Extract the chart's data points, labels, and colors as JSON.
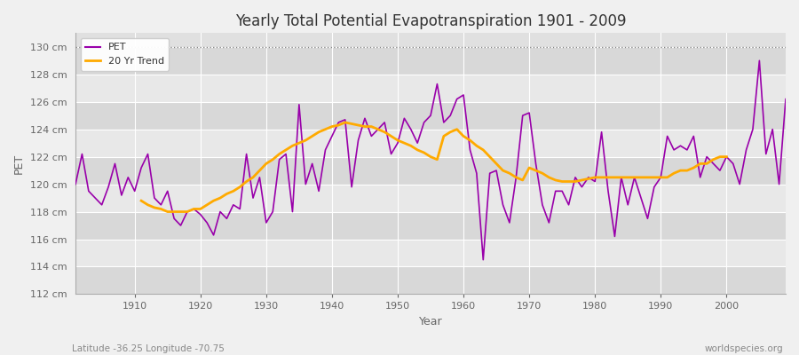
{
  "title": "Yearly Total Potential Evapotranspiration 1901 - 2009",
  "xlabel": "Year",
  "ylabel": "PET",
  "footnote_left": "Latitude -36.25 Longitude -70.75",
  "footnote_right": "worldspecies.org",
  "legend_pet": "PET",
  "legend_trend": "20 Yr Trend",
  "pet_color": "#9900aa",
  "trend_color": "#ffaa00",
  "background_color": "#f0f0f0",
  "plot_bg_color": "#e0e0e0",
  "band_color_1": "#d8d8d8",
  "band_color_2": "#e8e8e8",
  "ylim": [
    112,
    131
  ],
  "yticks": [
    112,
    114,
    116,
    118,
    120,
    122,
    124,
    126,
    128,
    130
  ],
  "ytick_labels": [
    "112 cm",
    "114 cm",
    "116 cm",
    "118 cm",
    "120 cm",
    "122 cm",
    "124 cm",
    "126 cm",
    "128 cm",
    "130 cm"
  ],
  "xlim": [
    1901,
    2009
  ],
  "xticks": [
    1910,
    1920,
    1930,
    1940,
    1950,
    1960,
    1970,
    1980,
    1990,
    2000
  ],
  "years": [
    1901,
    1902,
    1903,
    1904,
    1905,
    1906,
    1907,
    1908,
    1909,
    1910,
    1911,
    1912,
    1913,
    1914,
    1915,
    1916,
    1917,
    1918,
    1919,
    1920,
    1921,
    1922,
    1923,
    1924,
    1925,
    1926,
    1927,
    1928,
    1929,
    1930,
    1931,
    1932,
    1933,
    1934,
    1935,
    1936,
    1937,
    1938,
    1939,
    1940,
    1941,
    1942,
    1943,
    1944,
    1945,
    1946,
    1947,
    1948,
    1949,
    1950,
    1951,
    1952,
    1953,
    1954,
    1955,
    1956,
    1957,
    1958,
    1959,
    1960,
    1961,
    1962,
    1963,
    1964,
    1965,
    1966,
    1967,
    1968,
    1969,
    1970,
    1971,
    1972,
    1973,
    1974,
    1975,
    1976,
    1977,
    1978,
    1979,
    1980,
    1981,
    1982,
    1983,
    1984,
    1985,
    1986,
    1987,
    1988,
    1989,
    1990,
    1991,
    1992,
    1993,
    1994,
    1995,
    1996,
    1997,
    1998,
    1999,
    2000,
    2001,
    2002,
    2003,
    2004,
    2005,
    2006,
    2007,
    2008,
    2009
  ],
  "pet_values": [
    120.0,
    122.2,
    119.5,
    119.0,
    118.5,
    119.8,
    121.5,
    119.2,
    120.5,
    119.5,
    121.2,
    122.2,
    119.0,
    118.5,
    119.5,
    117.5,
    117.0,
    118.0,
    118.2,
    117.8,
    117.2,
    116.3,
    118.0,
    117.5,
    118.5,
    118.2,
    122.2,
    119.0,
    120.5,
    117.2,
    118.0,
    121.8,
    122.2,
    118.0,
    125.8,
    120.0,
    121.5,
    119.5,
    122.5,
    123.5,
    124.5,
    124.7,
    119.8,
    123.2,
    124.8,
    123.5,
    124.0,
    124.5,
    122.2,
    123.0,
    124.8,
    124.0,
    123.0,
    124.5,
    125.0,
    127.3,
    124.5,
    125.0,
    126.2,
    126.5,
    122.5,
    120.8,
    114.5,
    120.8,
    121.0,
    118.5,
    117.2,
    120.5,
    125.0,
    125.2,
    121.5,
    118.5,
    117.2,
    119.5,
    119.5,
    118.5,
    120.5,
    119.8,
    120.5,
    120.2,
    123.8,
    119.5,
    116.2,
    120.5,
    118.5,
    120.5,
    119.0,
    117.5,
    119.8,
    120.5,
    123.5,
    122.5,
    122.8,
    122.5,
    123.5,
    120.5,
    122.0,
    121.5,
    121.0,
    122.0,
    121.5,
    120.0,
    122.5,
    124.0,
    129.0,
    122.2,
    124.0,
    120.0,
    126.2
  ],
  "trend_values": [
    null,
    null,
    null,
    null,
    null,
    null,
    null,
    null,
    null,
    null,
    118.8,
    118.5,
    118.3,
    118.2,
    118.0,
    118.0,
    118.0,
    118.0,
    118.2,
    118.2,
    118.5,
    118.8,
    119.0,
    119.3,
    119.5,
    119.8,
    120.2,
    120.5,
    121.0,
    121.5,
    121.8,
    122.2,
    122.5,
    122.8,
    123.0,
    123.2,
    123.5,
    123.8,
    124.0,
    124.2,
    124.3,
    124.5,
    124.4,
    124.3,
    124.2,
    124.2,
    124.0,
    123.8,
    123.5,
    123.2,
    123.0,
    122.8,
    122.5,
    122.3,
    122.0,
    121.8,
    123.5,
    123.8,
    124.0,
    123.5,
    123.2,
    122.8,
    122.5,
    122.0,
    121.5,
    121.0,
    120.8,
    120.5,
    120.3,
    121.2,
    121.0,
    120.8,
    120.5,
    120.3,
    120.2,
    120.2,
    120.2,
    120.3,
    120.4,
    120.5,
    120.5,
    120.5,
    120.5,
    120.5,
    120.5,
    120.5,
    120.5,
    120.5,
    120.5,
    120.5,
    120.5,
    120.8,
    121.0,
    121.0,
    121.2,
    121.5,
    121.5,
    121.8,
    122.0,
    122.0,
    null,
    null,
    null,
    null,
    null,
    null,
    null,
    null,
    null
  ]
}
